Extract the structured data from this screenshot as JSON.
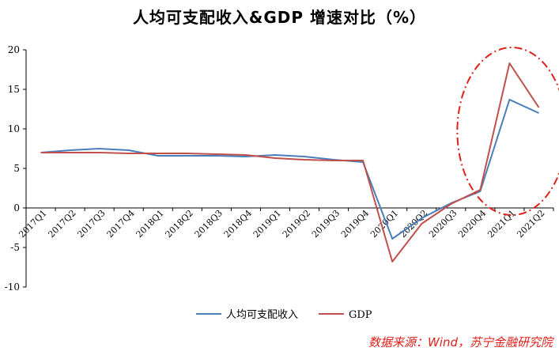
{
  "chart_data": {
    "type": "line",
    "title": "人均可支配收入&GDP 增速对比（%）",
    "source": "数据来源：Wind，苏宁金融研究院",
    "categories": [
      "2017Q1",
      "2017Q2",
      "2017Q3",
      "2017Q4",
      "2018Q1",
      "2018Q2",
      "2018Q3",
      "2018Q4",
      "2019Q1",
      "2019Q2",
      "2019Q3",
      "2019Q4",
      "2020Q1",
      "2020Q2",
      "2020Q3",
      "2020Q4",
      "2021Q1",
      "2021Q2"
    ],
    "series": [
      {
        "name": "人均可支配收入",
        "color": "#4a7ebb",
        "values": [
          7.0,
          7.3,
          7.5,
          7.3,
          6.6,
          6.6,
          6.6,
          6.5,
          6.7,
          6.5,
          6.1,
          5.8,
          -3.9,
          -1.3,
          0.6,
          2.1,
          13.7,
          12.0
        ]
      },
      {
        "name": "GDP",
        "color": "#c0504d",
        "values": [
          7.0,
          7.0,
          7.0,
          6.9,
          6.9,
          6.9,
          6.8,
          6.7,
          6.3,
          6.1,
          6.0,
          6.0,
          -6.8,
          -2.0,
          0.5,
          2.3,
          18.3,
          12.7
        ]
      }
    ],
    "ylim": [
      -10,
      20
    ],
    "yticks": [
      "-10",
      "-5",
      "0",
      "5",
      "10",
      "15",
      "20"
    ],
    "grid": false,
    "legend": "bottom",
    "highlight": {
      "shape": "dash-dot ellipse",
      "color": "#e0201b",
      "around": [
        "2020Q4",
        "2021Q1",
        "2021Q2"
      ]
    }
  }
}
